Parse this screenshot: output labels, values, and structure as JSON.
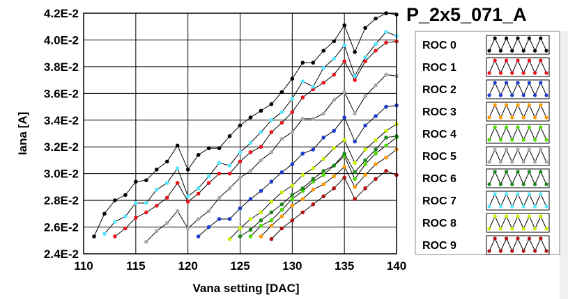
{
  "chart_data": {
    "type": "line",
    "title": "P_2x5_071_A",
    "xlabel": "Vana setting [DAC]",
    "ylabel": "Iana [A]",
    "xlim": [
      110,
      140
    ],
    "ylim": [
      0.024,
      0.042
    ],
    "x_ticks": [
      110,
      115,
      120,
      125,
      130,
      135,
      140
    ],
    "x_tick_labels": [
      "110",
      "115",
      "120",
      "125",
      "130",
      "135",
      "140"
    ],
    "y_ticks": [
      0.024,
      0.026,
      0.028,
      0.03,
      0.032,
      0.034,
      0.036,
      0.038,
      0.04,
      0.042
    ],
    "y_tick_labels": [
      "2.4E-2",
      "2.6E-2",
      "2.8E-2",
      "3.0E-2",
      "3.2E-2",
      "3.4E-2",
      "3.6E-2",
      "3.8E-2",
      "4.0E-2",
      "4.2E-2"
    ],
    "grid": true,
    "legend_position": "right",
    "series": [
      {
        "name": "ROC 0",
        "color": "#000000",
        "x": [
          111,
          112,
          113,
          114,
          115,
          116,
          117,
          118,
          119,
          120,
          121,
          122,
          123,
          124,
          125,
          126,
          127,
          128,
          129,
          130,
          131,
          132,
          133,
          134,
          135,
          136,
          137,
          138,
          139,
          140
        ],
        "y": [
          0.0253,
          0.027,
          0.028,
          0.0284,
          0.0294,
          0.0295,
          0.0303,
          0.0309,
          0.0321,
          0.0303,
          0.0314,
          0.0319,
          0.0319,
          0.0328,
          0.0336,
          0.0342,
          0.0347,
          0.0352,
          0.0361,
          0.0371,
          0.0383,
          0.0383,
          0.0392,
          0.0399,
          0.0411,
          0.0391,
          0.0409,
          0.0416,
          0.042,
          0.0419
        ]
      },
      {
        "name": "ROC 1",
        "color": "#e8141a",
        "x": [
          113,
          114,
          115,
          116,
          117,
          118,
          119,
          120,
          121,
          122,
          123,
          124,
          125,
          126,
          127,
          128,
          129,
          130,
          131,
          132,
          133,
          134,
          135,
          136,
          137,
          138,
          139,
          140
        ],
        "y": [
          0.0253,
          0.0259,
          0.0267,
          0.0271,
          0.0276,
          0.0282,
          0.0293,
          0.0279,
          0.0285,
          0.0293,
          0.03,
          0.03,
          0.0309,
          0.0316,
          0.032,
          0.0331,
          0.0338,
          0.0346,
          0.0357,
          0.0363,
          0.0368,
          0.0374,
          0.0384,
          0.037,
          0.0384,
          0.0392,
          0.0398,
          0.0399
        ]
      },
      {
        "name": "ROC 2",
        "color": "#1a3ad0",
        "x": [
          121,
          122,
          123,
          124,
          125,
          126,
          127,
          128,
          129,
          130,
          131,
          132,
          133,
          134,
          135,
          136,
          137,
          138,
          139,
          140
        ],
        "y": [
          0.0253,
          0.026,
          0.0266,
          0.0266,
          0.0274,
          0.0281,
          0.0287,
          0.0294,
          0.0301,
          0.0307,
          0.0315,
          0.0318,
          0.0327,
          0.0332,
          0.0342,
          0.0324,
          0.0336,
          0.0343,
          0.035,
          0.0351
        ]
      },
      {
        "name": "ROC 3",
        "color": "#ff9a00",
        "x": [
          127,
          128,
          129,
          130,
          131,
          132,
          133,
          134,
          135,
          136,
          137,
          138,
          139,
          140
        ],
        "y": [
          0.0253,
          0.0261,
          0.0268,
          0.0276,
          0.0281,
          0.0288,
          0.0292,
          0.0298,
          0.0305,
          0.029,
          0.0299,
          0.0307,
          0.0312,
          0.0318
        ]
      },
      {
        "name": "ROC 4",
        "color": "#4ddc00",
        "x": [
          126,
          127,
          128,
          129,
          130,
          131,
          132,
          133,
          134,
          135,
          136,
          137,
          138,
          139,
          140
        ],
        "y": [
          0.0253,
          0.0261,
          0.0265,
          0.0273,
          0.0281,
          0.0287,
          0.0294,
          0.0299,
          0.0306,
          0.0313,
          0.0296,
          0.0307,
          0.0315,
          0.0321,
          0.0327
        ]
      },
      {
        "name": "ROC 5",
        "color": "#aaaaaa",
        "x": [
          116,
          117,
          118,
          119,
          120,
          121,
          122,
          123,
          124,
          125,
          126,
          127,
          128,
          129,
          130,
          131,
          132,
          133,
          134,
          135,
          136,
          137,
          138,
          139,
          140
        ],
        "y": [
          0.0249,
          0.0257,
          0.0263,
          0.0272,
          0.0259,
          0.0266,
          0.0272,
          0.0282,
          0.0289,
          0.0297,
          0.0302,
          0.031,
          0.0316,
          0.0326,
          0.0331,
          0.0341,
          0.0341,
          0.0345,
          0.0355,
          0.0361,
          0.0345,
          0.0358,
          0.0366,
          0.0374,
          0.0373
        ]
      },
      {
        "name": "ROC 6",
        "color": "#1a8a1a",
        "x": [
          125,
          126,
          127,
          128,
          129,
          130,
          131,
          132,
          133,
          134,
          135,
          136,
          137,
          138,
          139,
          140
        ],
        "y": [
          0.0253,
          0.0258,
          0.0265,
          0.0271,
          0.0277,
          0.0284,
          0.0289,
          0.0296,
          0.0302,
          0.0306,
          0.0315,
          0.0301,
          0.031,
          0.0318,
          0.0327,
          0.0328
        ]
      },
      {
        "name": "ROC 7",
        "color": "#55e8ff",
        "x": [
          112,
          113,
          114,
          115,
          116,
          117,
          118,
          119,
          120,
          121,
          122,
          123,
          124,
          125,
          126,
          127,
          128,
          129,
          130,
          131,
          132,
          133,
          134,
          135,
          136,
          137,
          138,
          139,
          140
        ],
        "y": [
          0.0255,
          0.0264,
          0.0268,
          0.0278,
          0.0278,
          0.0288,
          0.0293,
          0.0304,
          0.0283,
          0.0289,
          0.0298,
          0.0308,
          0.0306,
          0.0316,
          0.0323,
          0.0331,
          0.034,
          0.0346,
          0.0356,
          0.0369,
          0.0365,
          0.0379,
          0.0386,
          0.0396,
          0.0373,
          0.0387,
          0.0397,
          0.0406,
          0.0403
        ]
      },
      {
        "name": "ROC 8",
        "color": "#ccee00",
        "x": [
          124,
          125,
          126,
          127,
          128,
          129,
          130,
          131,
          132,
          133,
          134,
          135,
          136,
          137,
          138,
          139,
          140
        ],
        "y": [
          0.0251,
          0.0259,
          0.0266,
          0.0271,
          0.0279,
          0.0286,
          0.0291,
          0.0299,
          0.0304,
          0.0311,
          0.0319,
          0.0325,
          0.0308,
          0.0318,
          0.0325,
          0.0332,
          0.0337
        ]
      },
      {
        "name": "ROC 9",
        "color": "#b01010",
        "x": [
          128,
          129,
          130,
          131,
          132,
          133,
          134,
          135,
          136,
          137,
          138,
          139,
          140
        ],
        "y": [
          0.0251,
          0.0259,
          0.0265,
          0.0271,
          0.0277,
          0.0283,
          0.0289,
          0.0297,
          0.0281,
          0.0289,
          0.0296,
          0.0302,
          0.0299
        ]
      }
    ]
  }
}
